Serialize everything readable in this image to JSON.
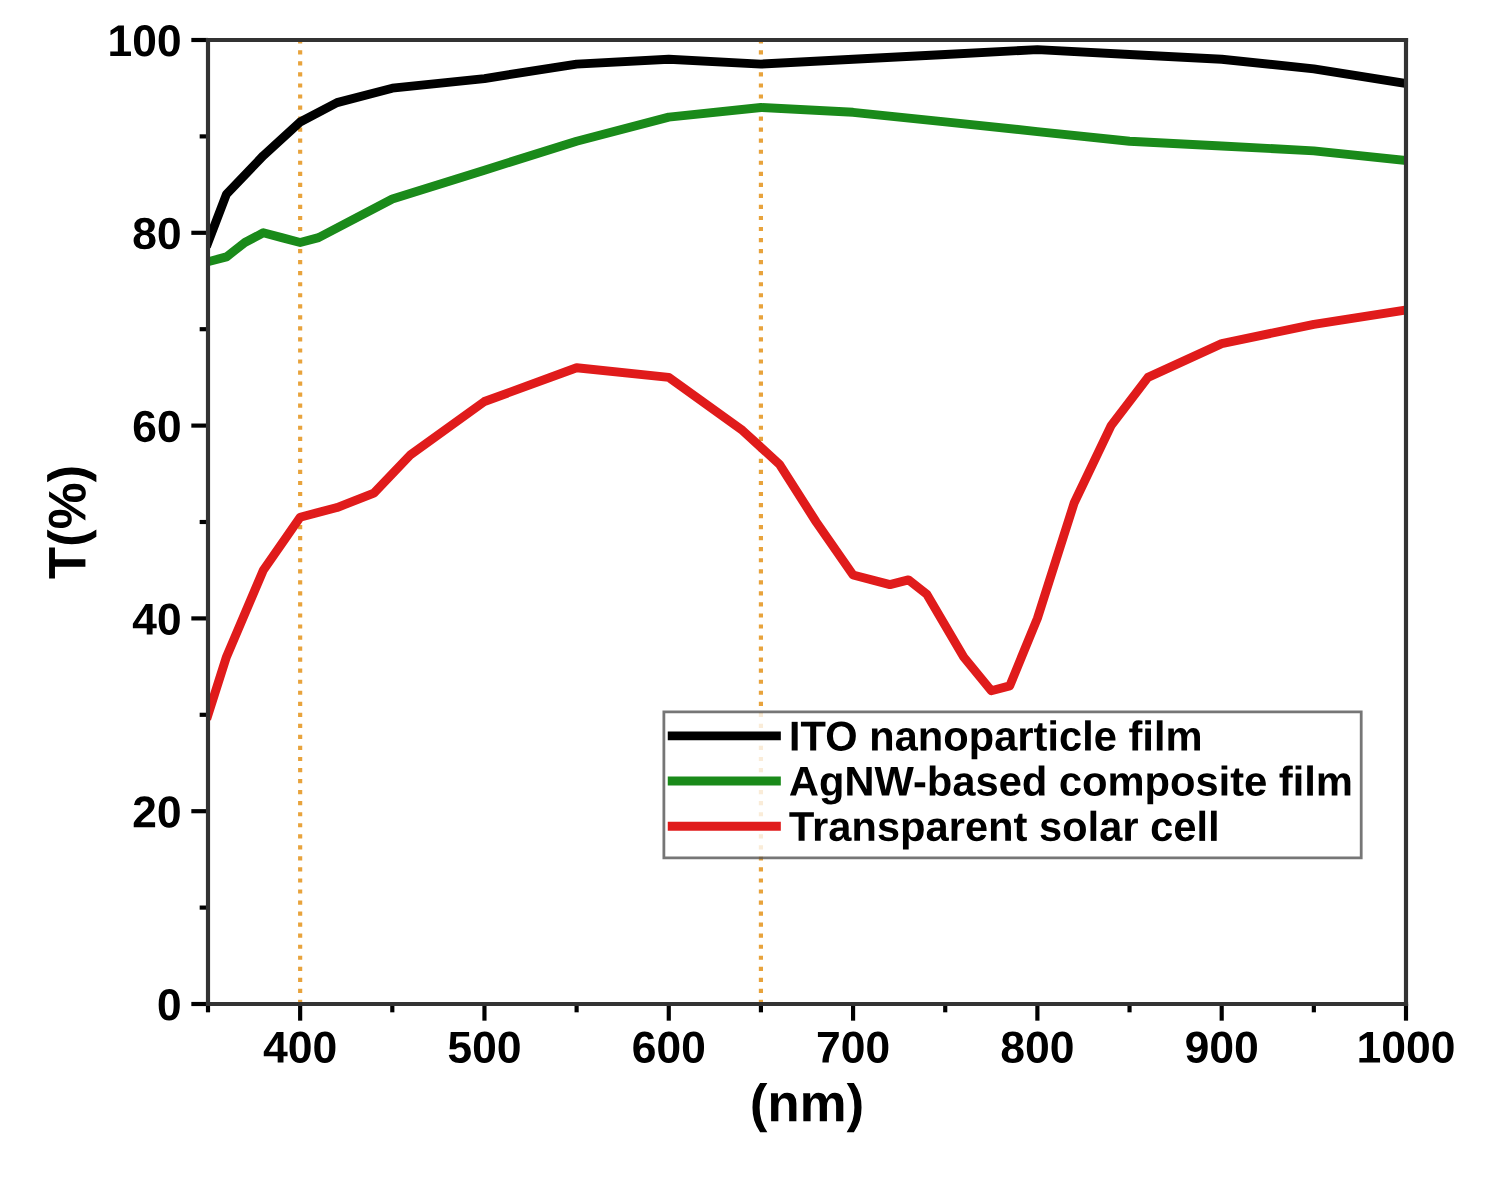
{
  "chart_data": {
    "type": "line",
    "xlabel": "(nm)",
    "ylabel": "T(%)",
    "xlim": [
      350,
      1000
    ],
    "ylim": [
      0,
      100
    ],
    "xticks": [
      400,
      500,
      600,
      700,
      800,
      900,
      1000,
      {
        "value": 350,
        "label": null
      },
      {
        "value": 450,
        "label": null
      },
      {
        "value": 550,
        "label": null
      },
      {
        "value": 650,
        "label": null
      },
      {
        "value": 750,
        "label": null
      },
      {
        "value": 850,
        "label": null
      },
      {
        "value": 950,
        "label": null
      }
    ],
    "yticks": [
      0,
      20,
      40,
      60,
      80,
      100,
      {
        "value": 10,
        "label": null
      },
      {
        "value": 30,
        "label": null
      },
      {
        "value": 50,
        "label": null
      },
      {
        "value": 70,
        "label": null
      },
      {
        "value": 90,
        "label": null
      }
    ],
    "grid": false,
    "legend": "bottom right",
    "marker": "none",
    "line_style": "solid",
    "ref_lines": [
      {
        "axis": "x",
        "value": 400,
        "color": "#e8a33c",
        "line_style": "dotted"
      },
      {
        "axis": "x",
        "value": 650,
        "color": "#e8a33c",
        "line_style": "dotted"
      }
    ],
    "series": [
      {
        "name": "ITO nanoparticle film",
        "color": "#000000",
        "x": [
          350,
          360,
          380,
          400,
          420,
          450,
          500,
          550,
          600,
          650,
          700,
          750,
          800,
          850,
          900,
          950,
          1000
        ],
        "values": [
          79,
          84,
          88,
          91.5,
          93.5,
          95,
          96,
          97.5,
          98,
          97.5,
          98,
          98.5,
          99,
          98.5,
          98,
          97,
          95.5
        ]
      },
      {
        "name": "AgNW-based composite film",
        "color": "#1a8a1a",
        "x": [
          350,
          360,
          370,
          380,
          390,
          400,
          410,
          450,
          500,
          550,
          600,
          650,
          700,
          750,
          800,
          850,
          900,
          950,
          1000
        ],
        "values": [
          77,
          77.5,
          79,
          80,
          79.5,
          79,
          79.5,
          83.5,
          86.5,
          89.5,
          92,
          93,
          92.5,
          91.5,
          90.5,
          89.5,
          89,
          88.5,
          87.5
        ]
      },
      {
        "name": "Transparent solar cell",
        "color": "#e01b1b",
        "x": [
          350,
          360,
          380,
          400,
          420,
          440,
          460,
          500,
          550,
          600,
          640,
          660,
          680,
          700,
          720,
          730,
          740,
          760,
          775,
          785,
          800,
          820,
          840,
          860,
          900,
          950,
          1000
        ],
        "values": [
          30,
          36,
          45,
          50.5,
          51.5,
          53,
          57,
          62.5,
          66,
          65,
          59.5,
          56,
          50,
          44.5,
          43.5,
          44,
          42.5,
          36,
          32.5,
          33,
          40,
          52,
          60,
          65,
          68.5,
          70.5,
          72
        ]
      }
    ]
  }
}
